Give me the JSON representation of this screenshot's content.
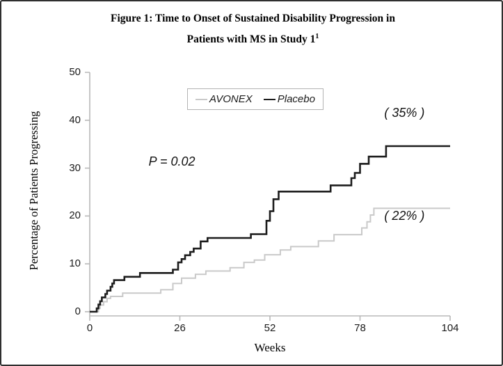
{
  "title": {
    "line1": "Figure 1:  Time to Onset of Sustained Disability Progression in",
    "line2": "Patients with MS in Study 1",
    "superscript": "1"
  },
  "legend": {
    "items": [
      {
        "label": "AVONEX",
        "color": "#c9c9c9"
      },
      {
        "label": "Placebo",
        "color": "#1c1c1c"
      }
    ]
  },
  "chart_data": {
    "type": "line",
    "subtype": "kaplan-meier-step",
    "title": "Figure 1: Time to Onset of Sustained Disability Progression in Patients with MS in Study 1",
    "xlabel": "Weeks",
    "ylabel": "Percentage of Patients Progressing",
    "xlim": [
      0,
      104
    ],
    "ylim": [
      0,
      50
    ],
    "x_ticks": [
      0,
      26,
      52,
      78,
      104
    ],
    "y_ticks": [
      0,
      10,
      20,
      30,
      40,
      50
    ],
    "grid": false,
    "legend_position": "top-center-inside",
    "axis_color": "#b8b8b8",
    "series": [
      {
        "name": "AVONEX",
        "color": "#c9c9c9",
        "stroke_width": 2,
        "final_percent": 22,
        "points": [
          [
            0,
            0
          ],
          [
            2.5,
            0.7
          ],
          [
            3,
            1.4
          ],
          [
            4,
            2.1
          ],
          [
            5,
            2.8
          ],
          [
            6,
            3.2
          ],
          [
            9.5,
            3.9
          ],
          [
            20.5,
            4.6
          ],
          [
            24,
            5.9
          ],
          [
            26.5,
            7.0
          ],
          [
            30.5,
            7.8
          ],
          [
            33.5,
            8.5
          ],
          [
            40.5,
            9.2
          ],
          [
            44.5,
            10.3
          ],
          [
            47.5,
            10.8
          ],
          [
            50.5,
            11.9
          ],
          [
            55,
            12.9
          ],
          [
            58,
            13.6
          ],
          [
            66,
            14.8
          ],
          [
            70.5,
            16.1
          ],
          [
            78.5,
            17.5
          ],
          [
            80,
            18.8
          ],
          [
            81,
            20.2
          ],
          [
            82,
            21.6
          ]
        ]
      },
      {
        "name": "Placebo",
        "color": "#1c1c1c",
        "stroke_width": 2.6,
        "final_percent": 35,
        "points": [
          [
            0,
            0
          ],
          [
            2,
            0.7
          ],
          [
            2.5,
            1.5
          ],
          [
            3,
            2.2
          ],
          [
            3.5,
            3.0
          ],
          [
            4.5,
            3.7
          ],
          [
            5,
            4.4
          ],
          [
            6,
            5.2
          ],
          [
            6.5,
            5.9
          ],
          [
            7,
            6.6
          ],
          [
            10,
            7.3
          ],
          [
            14.5,
            8.1
          ],
          [
            24,
            8.8
          ],
          [
            25.5,
            10.3
          ],
          [
            26.5,
            11.0
          ],
          [
            27.5,
            11.8
          ],
          [
            29,
            12.5
          ],
          [
            30,
            13.2
          ],
          [
            32,
            14.7
          ],
          [
            34,
            15.4
          ],
          [
            46.5,
            16.2
          ],
          [
            51,
            19.0
          ],
          [
            52,
            21.0
          ],
          [
            53,
            23.5
          ],
          [
            54.5,
            25.1
          ],
          [
            69.5,
            26.4
          ],
          [
            75.5,
            27.9
          ],
          [
            76.5,
            29.0
          ],
          [
            78,
            30.9
          ],
          [
            80.5,
            32.4
          ],
          [
            85.5,
            34.6
          ]
        ]
      }
    ],
    "annotations": {
      "p_value": {
        "text": "P = 0.02",
        "week": 17,
        "pct": 31.2
      },
      "placebo_final": {
        "text": "( 35% )",
        "week": 85,
        "pct": 41.4
      },
      "avonex_final": {
        "text": "( 22% )",
        "week": 85,
        "pct": 19.9
      }
    }
  }
}
